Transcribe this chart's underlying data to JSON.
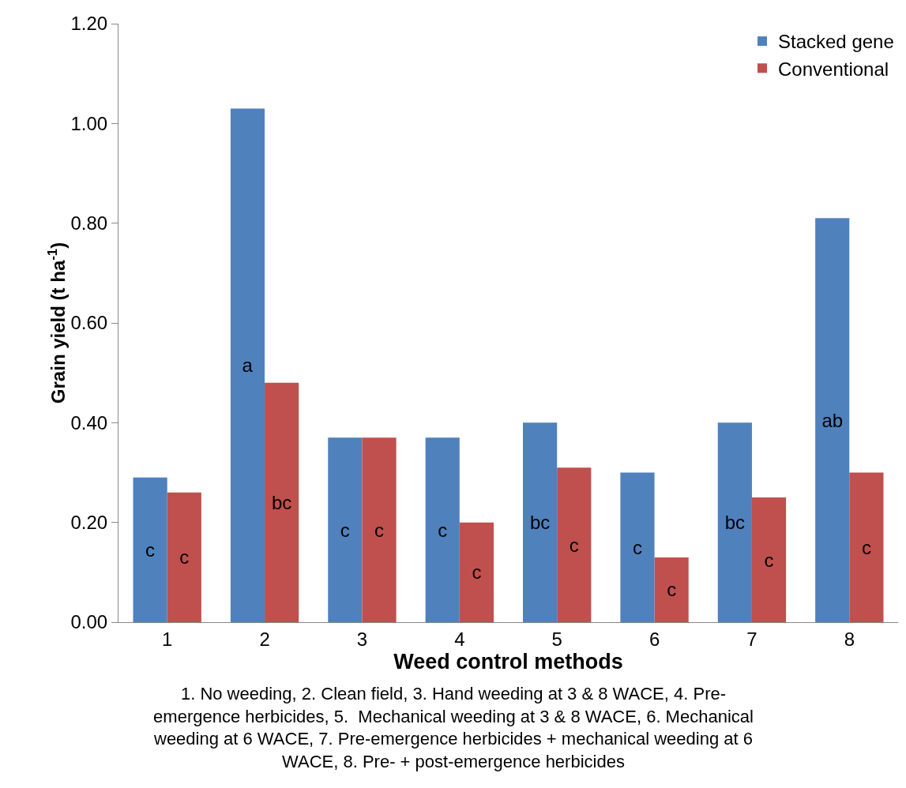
{
  "chart_data": {
    "type": "bar",
    "categories": [
      "1",
      "2",
      "3",
      "4",
      "5",
      "6",
      "7",
      "8"
    ],
    "series": [
      {
        "name": "Stacked gene",
        "color": "#4f81bd",
        "values": [
          0.29,
          1.03,
          0.37,
          0.37,
          0.4,
          0.3,
          0.4,
          0.81
        ],
        "value_labels": [
          "c",
          "a",
          "c",
          "c",
          "bc",
          "c",
          "bc",
          "ab"
        ]
      },
      {
        "name": "Conventional",
        "color": "#c0504d",
        "values": [
          0.26,
          0.48,
          0.37,
          0.2,
          0.31,
          0.13,
          0.25,
          0.3
        ],
        "value_labels": [
          "c",
          "bc",
          "c",
          "c",
          "c",
          "c",
          "c",
          "c"
        ]
      }
    ],
    "xlabel": "Weed control methods",
    "ylabel": "Grain yield (t ha$^{-1}$)",
    "ylim": [
      0,
      1.2
    ],
    "yticks": [
      {
        "value": 0,
        "label": "0.00"
      },
      {
        "value": 0.2,
        "label": "0.20"
      },
      {
        "value": 0.4,
        "label": "0.40"
      },
      {
        "value": 0.6,
        "label": "0.60"
      },
      {
        "value": 0.8,
        "label": "0.80"
      },
      {
        "value": 1.0,
        "label": "1.00"
      },
      {
        "value": 1.2,
        "label": "1.20"
      }
    ],
    "annotations": [
      "1. No weeding, 2. Clean field, 3. Hand weeding at 3 & 8 WACE, 4. Pre-\nemergence herbicides, 5.  Mechanical weeding at 3 & 8 WACE, 6. Mechanical\nweeding at 6 WACE, 7. Pre-emergence herbicides + mechanical weeding at 6\nWACE, 8. Pre- + post-emergence herbicides"
    ],
    "grid": false,
    "legend": "top right"
  }
}
